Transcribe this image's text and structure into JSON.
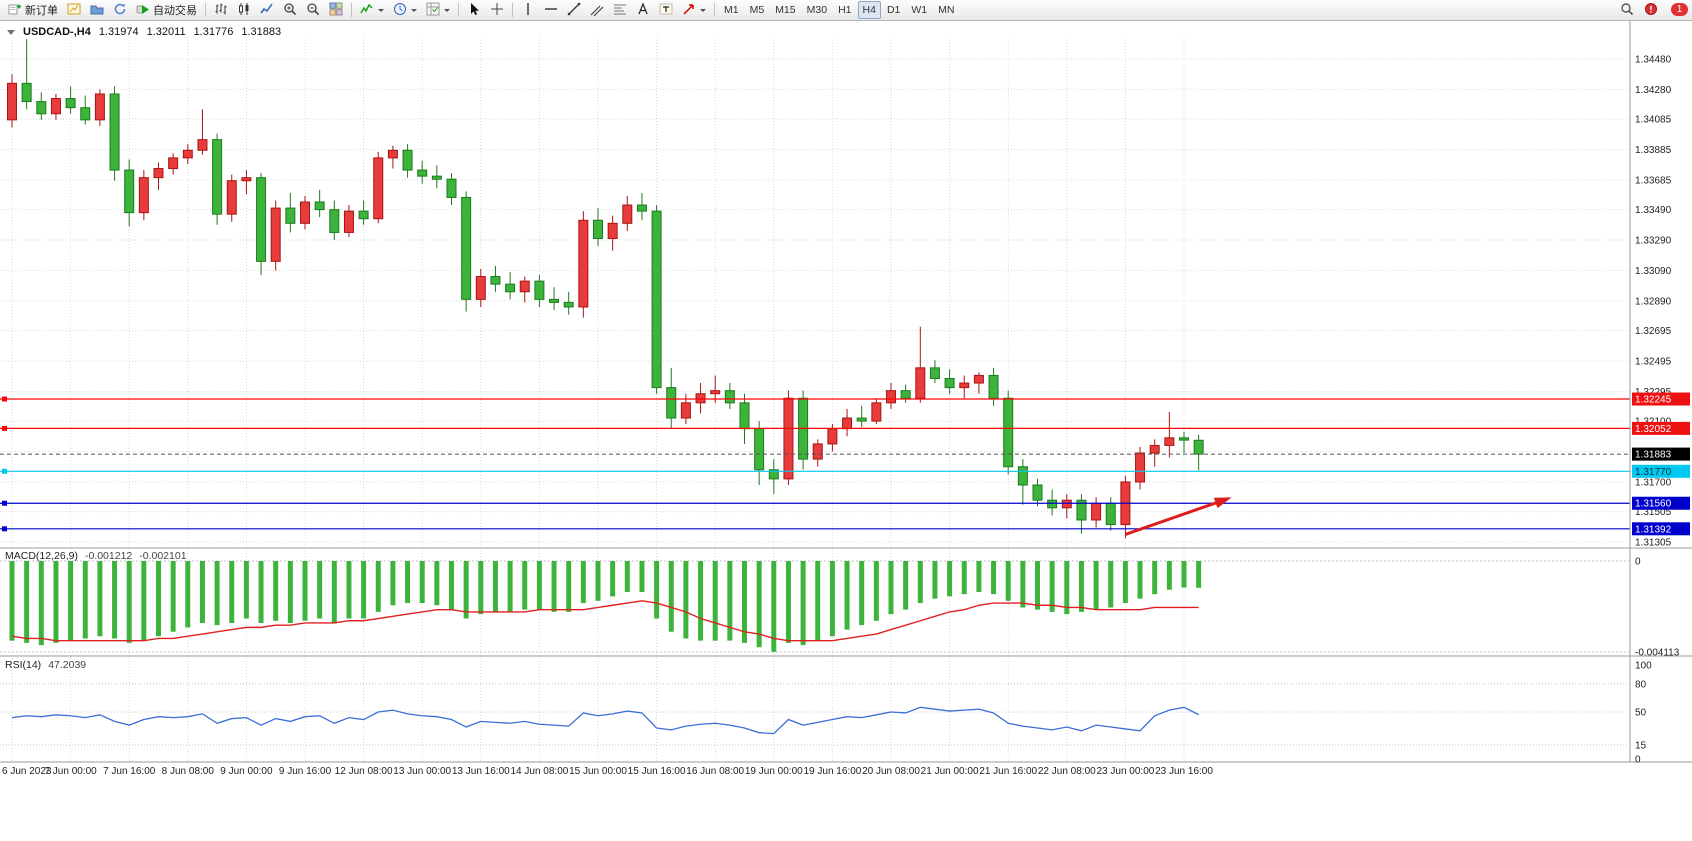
{
  "toolbar": {
    "new_order_label": "新订单",
    "autotrading_label": "自动交易",
    "timeframes": [
      "M1",
      "M5",
      "M15",
      "M30",
      "H1",
      "H4",
      "D1",
      "W1",
      "MN"
    ],
    "active_timeframe": "H4",
    "notification_count": "1"
  },
  "chart_header": {
    "symbol": "USDCAD-,H4",
    "open": "1.31974",
    "high": "1.32011",
    "low": "1.31776",
    "close": "1.31883"
  },
  "indicators": {
    "macd_name": "MACD(12,26,9)",
    "macd_value": "-0.001212",
    "macd_signal": "-0.002101",
    "rsi_name": "RSI(14)",
    "rsi_value": "47.2039"
  },
  "chart_data": [
    {
      "type": "candlestick",
      "symbol": "USDCAD-",
      "timeframe": "H4",
      "up_color": "#e83b3b",
      "up_border": "#a81515",
      "down_color": "#3cb43c",
      "down_border": "#1d7a1d",
      "x_label_every_n_bars": 4,
      "x_labels": [
        "6 Jun 2023",
        "7 Jun 00:00",
        "7 Jun 16:00",
        "8 Jun 08:00",
        "9 Jun 00:00",
        "9 Jun 16:00",
        "12 Jun 08:00",
        "13 Jun 00:00",
        "13 Jun 16:00",
        "14 Jun 08:00",
        "15 Jun 00:00",
        "15 Jun 16:00",
        "16 Jun 08:00",
        "19 Jun 00:00",
        "19 Jun 16:00",
        "20 Jun 08:00",
        "21 Jun 00:00",
        "21 Jun 16:00",
        "22 Jun 08:00",
        "23 Jun 00:00",
        "23 Jun 16:00"
      ],
      "y_axis_tick_labels": [
        "1.34480",
        "1.34280",
        "1.34085",
        "1.33885",
        "1.33685",
        "1.33490",
        "1.33290",
        "1.33090",
        "1.32890",
        "1.32695",
        "1.32495",
        "1.32295",
        "1.32100",
        "1.31900",
        "1.31700",
        "1.31505",
        "1.31305"
      ],
      "y_range": [
        1.3128,
        1.3466
      ],
      "candles": [
        [
          1.3408,
          1.3438,
          1.3403,
          1.3432
        ],
        [
          1.3432,
          1.3461,
          1.3415,
          1.342
        ],
        [
          1.342,
          1.3426,
          1.3408,
          1.3412
        ],
        [
          1.3412,
          1.3425,
          1.3408,
          1.3422
        ],
        [
          1.3422,
          1.343,
          1.3412,
          1.3416
        ],
        [
          1.3416,
          1.3424,
          1.3405,
          1.3408
        ],
        [
          1.3408,
          1.3428,
          1.3404,
          1.3425
        ],
        [
          1.3425,
          1.343,
          1.3368,
          1.3375
        ],
        [
          1.3375,
          1.3382,
          1.3338,
          1.3347
        ],
        [
          1.3347,
          1.3375,
          1.3342,
          1.337
        ],
        [
          1.337,
          1.338,
          1.3362,
          1.3376
        ],
        [
          1.3376,
          1.3386,
          1.3372,
          1.3383
        ],
        [
          1.3383,
          1.3392,
          1.3379,
          1.3388
        ],
        [
          1.3388,
          1.3415,
          1.3385,
          1.3395
        ],
        [
          1.3395,
          1.3399,
          1.3339,
          1.3346
        ],
        [
          1.3346,
          1.3372,
          1.3341,
          1.3368
        ],
        [
          1.3368,
          1.3375,
          1.3359,
          1.337
        ],
        [
          1.337,
          1.3373,
          1.3306,
          1.3315
        ],
        [
          1.3315,
          1.3355,
          1.3309,
          1.335
        ],
        [
          1.335,
          1.336,
          1.3334,
          1.334
        ],
        [
          1.334,
          1.3358,
          1.3336,
          1.3354
        ],
        [
          1.3354,
          1.3362,
          1.3344,
          1.3349
        ],
        [
          1.3349,
          1.3355,
          1.3329,
          1.3334
        ],
        [
          1.3334,
          1.3352,
          1.3331,
          1.3348
        ],
        [
          1.3348,
          1.3355,
          1.3339,
          1.3343
        ],
        [
          1.3343,
          1.3387,
          1.334,
          1.3383
        ],
        [
          1.3383,
          1.3391,
          1.3376,
          1.3388
        ],
        [
          1.3388,
          1.3392,
          1.337,
          1.3375
        ],
        [
          1.3375,
          1.3381,
          1.3366,
          1.3371
        ],
        [
          1.3371,
          1.3378,
          1.3363,
          1.3369
        ],
        [
          1.3369,
          1.3373,
          1.3352,
          1.3357
        ],
        [
          1.3357,
          1.3361,
          1.3282,
          1.329
        ],
        [
          1.329,
          1.331,
          1.3285,
          1.3305
        ],
        [
          1.3305,
          1.3312,
          1.3295,
          1.33
        ],
        [
          1.33,
          1.3308,
          1.329,
          1.3295
        ],
        [
          1.3295,
          1.3305,
          1.3288,
          1.3302
        ],
        [
          1.3302,
          1.3306,
          1.3285,
          1.329
        ],
        [
          1.329,
          1.3298,
          1.3283,
          1.3288
        ],
        [
          1.3288,
          1.3295,
          1.328,
          1.3285
        ],
        [
          1.3285,
          1.3348,
          1.3278,
          1.3342
        ],
        [
          1.3342,
          1.335,
          1.3325,
          1.333
        ],
        [
          1.333,
          1.3345,
          1.3322,
          1.334
        ],
        [
          1.334,
          1.3358,
          1.3335,
          1.3352
        ],
        [
          1.3352,
          1.336,
          1.3342,
          1.3348
        ],
        [
          1.3348,
          1.3352,
          1.3228,
          1.3232
        ],
        [
          1.3232,
          1.3245,
          1.3205,
          1.3212
        ],
        [
          1.3212,
          1.3228,
          1.3208,
          1.3222
        ],
        [
          1.3222,
          1.3235,
          1.3215,
          1.3228
        ],
        [
          1.3228,
          1.324,
          1.3222,
          1.323
        ],
        [
          1.323,
          1.3235,
          1.3218,
          1.3222
        ],
        [
          1.3222,
          1.3228,
          1.3195,
          1.3205
        ],
        [
          1.3205,
          1.321,
          1.3168,
          1.3178
        ],
        [
          1.3178,
          1.3185,
          1.3162,
          1.3172
        ],
        [
          1.3172,
          1.323,
          1.3168,
          1.3225
        ],
        [
          1.3225,
          1.323,
          1.3178,
          1.3185
        ],
        [
          1.3185,
          1.3198,
          1.318,
          1.3195
        ],
        [
          1.3195,
          1.3208,
          1.319,
          1.3205
        ],
        [
          1.3205,
          1.3218,
          1.32,
          1.3212
        ],
        [
          1.3212,
          1.322,
          1.3206,
          1.321
        ],
        [
          1.321,
          1.3225,
          1.3208,
          1.3222
        ],
        [
          1.3222,
          1.3235,
          1.3218,
          1.323
        ],
        [
          1.323,
          1.3234,
          1.3222,
          1.3225
        ],
        [
          1.3225,
          1.3272,
          1.3222,
          1.3245
        ],
        [
          1.3245,
          1.325,
          1.3235,
          1.3238
        ],
        [
          1.3238,
          1.3244,
          1.3228,
          1.3232
        ],
        [
          1.3232,
          1.324,
          1.3225,
          1.3235
        ],
        [
          1.3235,
          1.3242,
          1.3228,
          1.324
        ],
        [
          1.324,
          1.3245,
          1.322,
          1.3225
        ],
        [
          1.3225,
          1.323,
          1.3175,
          1.318
        ],
        [
          1.318,
          1.3185,
          1.3155,
          1.3168
        ],
        [
          1.3168,
          1.3172,
          1.3154,
          1.3158
        ],
        [
          1.3158,
          1.3165,
          1.3148,
          1.3153
        ],
        [
          1.3153,
          1.3162,
          1.3146,
          1.3158
        ],
        [
          1.3158,
          1.3162,
          1.3136,
          1.3145
        ],
        [
          1.3145,
          1.316,
          1.314,
          1.3156
        ],
        [
          1.3156,
          1.316,
          1.3138,
          1.3142
        ],
        [
          1.3142,
          1.3174,
          1.3133,
          1.317
        ],
        [
          1.317,
          1.3193,
          1.3165,
          1.3189
        ],
        [
          1.3189,
          1.3198,
          1.318,
          1.3194
        ],
        [
          1.3194,
          1.3216,
          1.3186,
          1.3199
        ],
        [
          1.3199,
          1.3203,
          1.3189,
          1.31975
        ],
        [
          1.31974,
          1.32011,
          1.31776,
          1.31883
        ]
      ],
      "horizontal_lines": [
        {
          "price": 1.32245,
          "label": "1.32245",
          "color": "#ff0000",
          "label_bg": "#ee1111",
          "label_fg": "#ffffff"
        },
        {
          "price": 1.32052,
          "label": "1.32052",
          "color": "#ff0000",
          "label_bg": "#ee1111",
          "label_fg": "#ffffff"
        },
        {
          "price": 1.3177,
          "label": "1.31770",
          "color": "#00c8f0",
          "label_bg": "#00c8f0",
          "label_fg": "#00333d"
        },
        {
          "price": 1.3156,
          "label": "1.31560",
          "color": "#0000cd",
          "label_bg": "#0000cd",
          "label_fg": "#ffffff"
        },
        {
          "price": 1.31392,
          "label": "1.31392",
          "color": "#0000cd",
          "label_bg": "#0000cd",
          "label_fg": "#ffffff"
        }
      ],
      "current_price_line": {
        "price": 1.31883,
        "label": "1.31883",
        "label_bg": "#000000",
        "label_fg": "#ffffff"
      },
      "annotations": [
        {
          "type": "arrow",
          "from_bar": 76,
          "from_price": 1.31355,
          "to_bar": 83,
          "to_price": 1.3159,
          "color": "#dd1c1c"
        }
      ]
    },
    {
      "type": "bar",
      "title": "MACD(12,26,9)",
      "current_macd": -0.001212,
      "current_signal": -0.002101,
      "histogram_color": "#3cb43c",
      "signal_color": "#e02020",
      "y_ticks": [
        {
          "value": 0,
          "label": "0"
        },
        {
          "value": -0.004113,
          "label": "-0.004113"
        }
      ],
      "macd": [
        -0.0036,
        -0.0037,
        -0.0038,
        -0.0037,
        -0.0036,
        -0.0035,
        -0.0034,
        -0.0035,
        -0.0037,
        -0.0036,
        -0.0034,
        -0.0032,
        -0.003,
        -0.0028,
        -0.0029,
        -0.0028,
        -0.0026,
        -0.0028,
        -0.0027,
        -0.0028,
        -0.0027,
        -0.0026,
        -0.0028,
        -0.0026,
        -0.0026,
        -0.0023,
        -0.002,
        -0.0019,
        -0.0019,
        -0.002,
        -0.0022,
        -0.0026,
        -0.0024,
        -0.0023,
        -0.0023,
        -0.0022,
        -0.0022,
        -0.0023,
        -0.0023,
        -0.0019,
        -0.0018,
        -0.0016,
        -0.0014,
        -0.0014,
        -0.0026,
        -0.0032,
        -0.0035,
        -0.0036,
        -0.0036,
        -0.0036,
        -0.0037,
        -0.0039,
        -0.0041,
        -0.0037,
        -0.0038,
        -0.0036,
        -0.0034,
        -0.0031,
        -0.0029,
        -0.0027,
        -0.0024,
        -0.0022,
        -0.0019,
        -0.0017,
        -0.0016,
        -0.0015,
        -0.0014,
        -0.0015,
        -0.0018,
        -0.0021,
        -0.0022,
        -0.0023,
        -0.0024,
        -0.0023,
        -0.0022,
        -0.0021,
        -0.0019,
        -0.0017,
        -0.0015,
        -0.0013,
        -0.0012,
        -0.001212
      ],
      "signal": [
        -0.0034,
        -0.0035,
        -0.0035,
        -0.0036,
        -0.0036,
        -0.0036,
        -0.0036,
        -0.0036,
        -0.0036,
        -0.0036,
        -0.0035,
        -0.0035,
        -0.0034,
        -0.0033,
        -0.0032,
        -0.0031,
        -0.003,
        -0.003,
        -0.0029,
        -0.0029,
        -0.0028,
        -0.0028,
        -0.0028,
        -0.0027,
        -0.0027,
        -0.0026,
        -0.0025,
        -0.0024,
        -0.0023,
        -0.0022,
        -0.0022,
        -0.0023,
        -0.0023,
        -0.0023,
        -0.0023,
        -0.0023,
        -0.0022,
        -0.0022,
        -0.0022,
        -0.0022,
        -0.0021,
        -0.002,
        -0.0019,
        -0.0018,
        -0.0019,
        -0.0021,
        -0.0023,
        -0.0026,
        -0.0028,
        -0.003,
        -0.0032,
        -0.0033,
        -0.0035,
        -0.0036,
        -0.0036,
        -0.0036,
        -0.0036,
        -0.0035,
        -0.0034,
        -0.0033,
        -0.0031,
        -0.0029,
        -0.0027,
        -0.0025,
        -0.0023,
        -0.0022,
        -0.002,
        -0.0019,
        -0.0019,
        -0.0019,
        -0.002,
        -0.002,
        -0.0021,
        -0.0021,
        -0.0022,
        -0.0022,
        -0.0022,
        -0.0022,
        -0.0021,
        -0.0021,
        -0.0021,
        -0.002101
      ]
    },
    {
      "type": "line",
      "title": "RSI(14)",
      "current_value": 47.2039,
      "line_color": "#3a6fd8",
      "range": [
        0,
        100
      ],
      "y_ticks": [
        {
          "value": 100,
          "label": "100"
        },
        {
          "value": 80,
          "label": "80"
        },
        {
          "value": 50,
          "label": "50"
        },
        {
          "value": 15,
          "label": "15"
        },
        {
          "value": 0,
          "label": "0"
        }
      ],
      "level_lines": [
        80,
        50,
        15
      ],
      "values": [
        44,
        46,
        45,
        47,
        46,
        44,
        47,
        40,
        36,
        42,
        45,
        44,
        45,
        48,
        38,
        43,
        44,
        36,
        43,
        40,
        45,
        46,
        38,
        44,
        42,
        50,
        52,
        48,
        46,
        45,
        42,
        34,
        40,
        39,
        38,
        40,
        37,
        36,
        35,
        49,
        46,
        48,
        51,
        49,
        33,
        31,
        35,
        37,
        38,
        36,
        33,
        28,
        27,
        42,
        36,
        39,
        42,
        45,
        44,
        47,
        50,
        49,
        55,
        53,
        51,
        52,
        53,
        49,
        38,
        35,
        33,
        31,
        34,
        30,
        36,
        34,
        32,
        30,
        46,
        52,
        55,
        47.2
      ]
    }
  ]
}
